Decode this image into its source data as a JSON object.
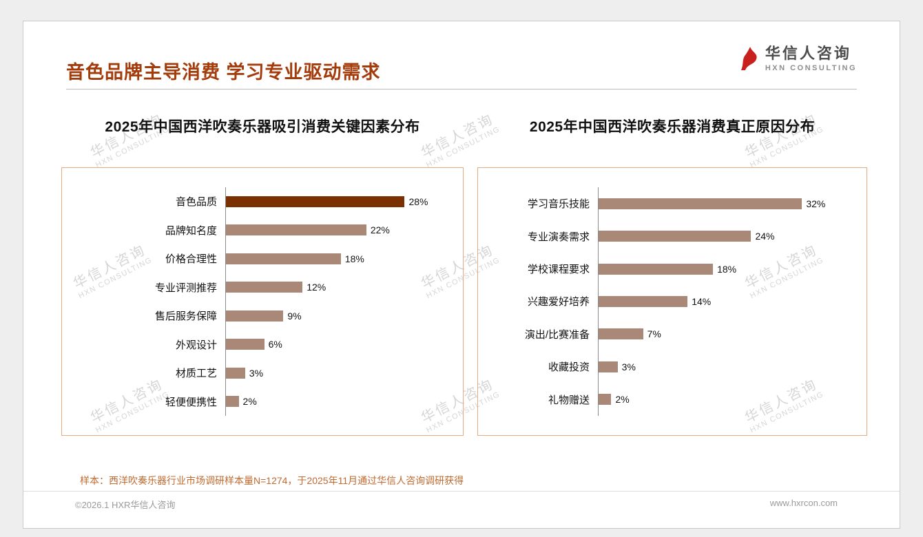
{
  "page": {
    "title": "音色品牌主导消费 学习专业驱动需求",
    "logo": {
      "name": "华信人咨询",
      "subtitle": "HXN CONSULTING"
    },
    "watermark": {
      "line1": "华信人咨询",
      "line2": "HXN CONSULTING"
    },
    "sample_note": "样本：西洋吹奏乐器行业市场调研样本量N=1274，于2025年11月通过华信人咨询调研获得",
    "footer_left": "©2026.1 HXR华信人咨询",
    "footer_right": "www.hxrcon.com"
  },
  "colors": {
    "title": "#A33B0B",
    "chart_border": "#EBA97E",
    "note": "#C06A2F",
    "footer_text": "#9a9a9a",
    "logo_red": "#C8201D"
  },
  "chart_data": [
    {
      "type": "bar",
      "orientation": "horizontal",
      "title": "2025年中国西洋吹奏乐器吸引消费关键因素分布",
      "categories": [
        "音色品质",
        "品牌知名度",
        "价格合理性",
        "专业评测推荐",
        "售后服务保障",
        "外观设计",
        "材质工艺",
        "轻便便携性"
      ],
      "values": [
        28,
        22,
        18,
        12,
        9,
        6,
        3,
        2
      ],
      "unit": "%",
      "xlim": [
        0,
        30
      ],
      "grid": false,
      "legend": false,
      "bar_color": "#A98878",
      "highlight_index": 0,
      "highlight_color": "#7B3000"
    },
    {
      "type": "bar",
      "orientation": "horizontal",
      "title": "2025年中国西洋吹奏乐器消费真正原因分布",
      "categories": [
        "学习音乐技能",
        "专业演奏需求",
        "学校课程要求",
        "兴趣爱好培养",
        "演出/比赛准备",
        "收藏投资",
        "礼物赠送"
      ],
      "values": [
        32,
        24,
        18,
        14,
        7,
        3,
        2
      ],
      "unit": "%",
      "xlim": [
        0,
        35
      ],
      "grid": false,
      "legend": false,
      "bar_color": "#A98878",
      "highlight_index": -1,
      "highlight_color": "#7B3000"
    }
  ]
}
